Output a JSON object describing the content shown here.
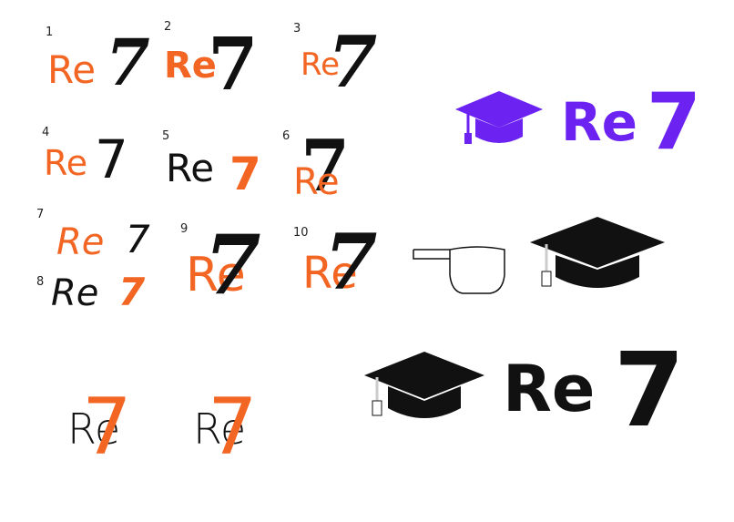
{
  "colors": {
    "orange": "#f26522",
    "black": "#111111",
    "purple": "#6c22f0"
  },
  "variant_numbers": [
    "1",
    "2",
    "3",
    "4",
    "5",
    "6",
    "7",
    "8",
    "9",
    "10"
  ],
  "logo": {
    "re": "Re",
    "seven": "7"
  },
  "icons": [
    "graduation-cap-icon",
    "cap-base-icon"
  ]
}
